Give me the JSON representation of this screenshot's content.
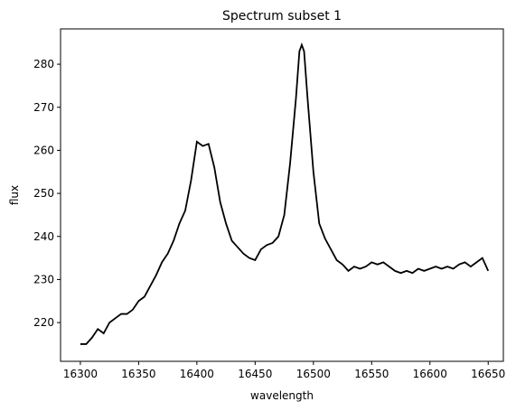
{
  "chart_data": {
    "type": "line",
    "title": "Spectrum subset 1",
    "xlabel": "wavelength",
    "ylabel": "flux",
    "x": [
      16300,
      16305,
      16310,
      16315,
      16320,
      16325,
      16330,
      16335,
      16340,
      16345,
      16350,
      16355,
      16360,
      16365,
      16370,
      16375,
      16380,
      16385,
      16390,
      16395,
      16400,
      16405,
      16410,
      16415,
      16420,
      16425,
      16430,
      16435,
      16440,
      16445,
      16450,
      16455,
      16460,
      16465,
      16470,
      16475,
      16480,
      16485,
      16488,
      16490,
      16492,
      16495,
      16500,
      16505,
      16510,
      16515,
      16520,
      16525,
      16530,
      16535,
      16540,
      16545,
      16550,
      16555,
      16560,
      16565,
      16570,
      16575,
      16580,
      16585,
      16590,
      16595,
      16600,
      16605,
      16610,
      16615,
      16620,
      16625,
      16630,
      16635,
      16640,
      16645,
      16650
    ],
    "series": [
      {
        "color": "#000000",
        "values": [
          215,
          215,
          216.5,
          218.5,
          217.5,
          220,
          221,
          222,
          222,
          223,
          225,
          226,
          228.5,
          231,
          234,
          236,
          239,
          243,
          246,
          253,
          262,
          261,
          261.5,
          256,
          248,
          243,
          239,
          237.5,
          236,
          235,
          234.5,
          237,
          238,
          238.5,
          240,
          245,
          257,
          272,
          283,
          284.5,
          283,
          272,
          255,
          243,
          239.5,
          237,
          234.5,
          233.5,
          232,
          233,
          232.5,
          233,
          234,
          233.5,
          234,
          233,
          232,
          231.5,
          232,
          231.5,
          232.5,
          232,
          232.5,
          233,
          232.5,
          233,
          232.5,
          233.5,
          234,
          233,
          234,
          235,
          232
        ]
      }
    ],
    "xlim": [
      16283,
      16663
    ],
    "ylim": [
      211,
      288.2
    ],
    "xticks": [
      16300,
      16350,
      16400,
      16450,
      16500,
      16550,
      16600,
      16650
    ],
    "yticks": [
      220,
      230,
      240,
      250,
      260,
      270,
      280
    ]
  }
}
